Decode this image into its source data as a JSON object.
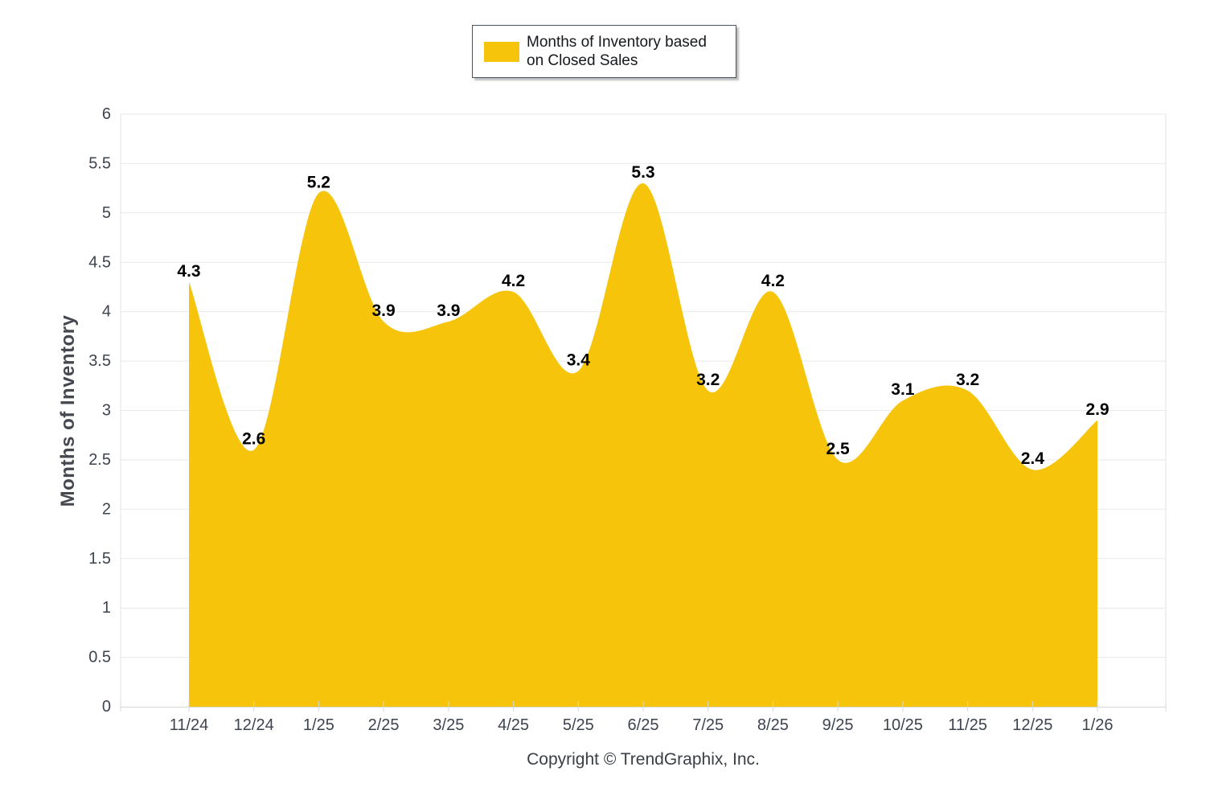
{
  "legend": {
    "label": "Months of Inventory based on Closed Sales",
    "swatch_color": "#F6C50B"
  },
  "chart_data": {
    "type": "area",
    "title": "",
    "categories": [
      "11/24",
      "12/24",
      "1/25",
      "2/25",
      "3/25",
      "4/25",
      "5/25",
      "6/25",
      "7/25",
      "8/25",
      "9/25",
      "10/25",
      "11/25",
      "12/25",
      "1/26"
    ],
    "values": [
      4.3,
      2.6,
      5.2,
      3.9,
      3.9,
      4.2,
      3.4,
      5.3,
      3.2,
      4.2,
      2.5,
      3.1,
      3.2,
      2.4,
      2.9
    ],
    "series_name": "Months of Inventory based on Closed Sales",
    "xlabel": "",
    "ylabel": "Months of Inventory",
    "ylim": [
      0,
      6
    ],
    "ytick_step": 0.5,
    "grid": "horizontal",
    "legend_position": "top-center",
    "curve": "spline",
    "data_labels": "one-decimal, bold, above points",
    "colors": {
      "fill": "#F6C50B",
      "gridline": "#E9E9E9",
      "axis_line": "#D7D7D7",
      "tick": "#D7D7D7",
      "plot_border": "#E3E3E3",
      "tick_text": "#3D4450",
      "data_label": "#000000"
    }
  },
  "footer": {
    "copyright": "Copyright © TrendGraphix, Inc."
  }
}
